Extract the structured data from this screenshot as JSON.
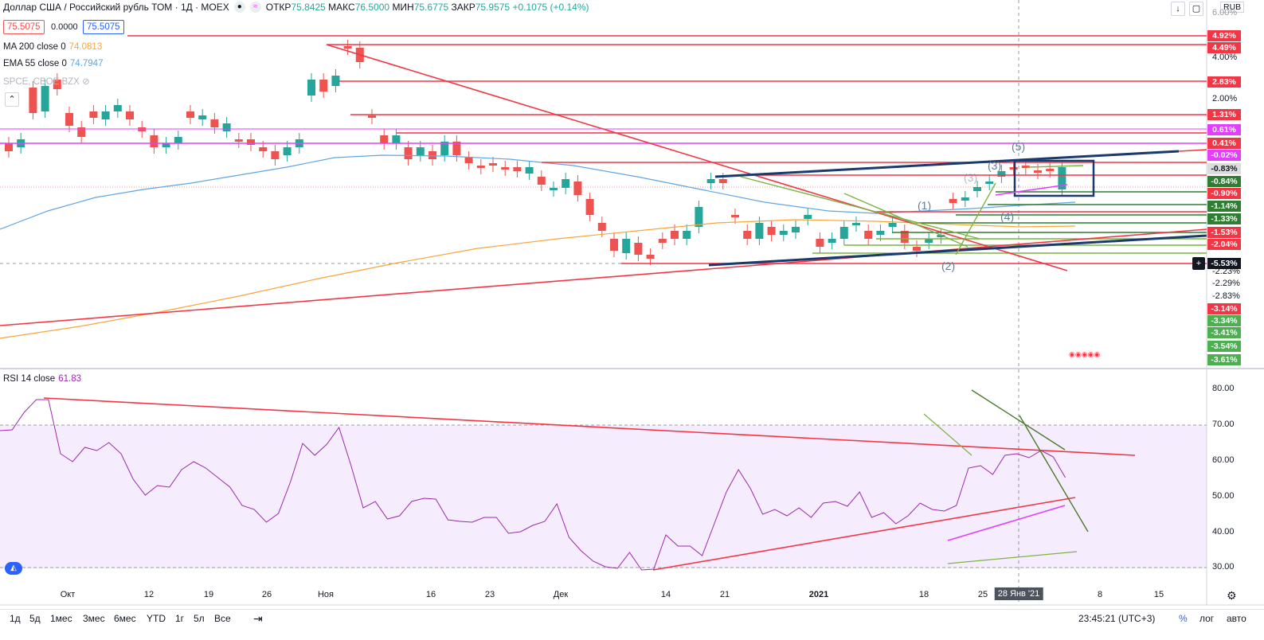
{
  "header": {
    "symbol": "Доллар США / Российский рубль ТОМ · 1Д · MOEX",
    "open_label": "ОТКР",
    "open": "75.8425",
    "high_label": "МАКС",
    "high": "76.5000",
    "low_label": "МИН",
    "low": "75.6775",
    "close_label": "ЗАКР",
    "close": "75.9575",
    "change": "+0.1075 (+0.14%)"
  },
  "price_boxes": {
    "bid": "75.5075",
    "spread": "0.0000",
    "ask": "75.5075"
  },
  "legend": {
    "ma200_label": "MA 200 close 0",
    "ma200_value": "74.0813",
    "ema55_label": "EMA 55 close 0",
    "ema55_value": "74.7947",
    "compare_label": "SPCE, CBOE BZX"
  },
  "currency": "RUB",
  "price_axis": [
    "6.00%",
    "4.00%",
    "2.00%",
    "-2.23%",
    "-2.29%",
    "-2.83%",
    "-3.34%",
    "-3.41%",
    "-3.54%",
    "-3.61%"
  ],
  "tags": [
    {
      "text": "4.92%",
      "bg": "#f23645"
    },
    {
      "text": "4.49%",
      "bg": "#f23645"
    },
    {
      "text": "2.83%",
      "bg": "#f23645"
    },
    {
      "text": "1.31%",
      "bg": "#f23645"
    },
    {
      "text": "0.61%",
      "bg": "#e040fb"
    },
    {
      "text": "0.41%",
      "bg": "#f23645"
    },
    {
      "text": "-0.02%",
      "bg": "#e040fb"
    },
    {
      "text": "-0.83%",
      "bg": "#dcdcdc"
    },
    {
      "text": "-0.84%",
      "bg": "#2e7d32"
    },
    {
      "text": "-0.90%",
      "bg": "#f23645"
    },
    {
      "text": "-1.14%",
      "bg": "#2e7d32"
    },
    {
      "text": "-1.33%",
      "bg": "#2e7d32"
    },
    {
      "text": "-1.53%",
      "bg": "#f23645"
    },
    {
      "text": "-2.04%",
      "bg": "#f23645"
    },
    {
      "text": "-5.53%",
      "bg": "#131722"
    },
    {
      "text": "-3.14%",
      "bg": "#f23645"
    },
    {
      "text": "-3.34%",
      "bg": "#4caf50"
    },
    {
      "text": "-3.41%",
      "bg": "#4caf50"
    },
    {
      "text": "-3.54%",
      "bg": "#4caf50"
    },
    {
      "text": "-3.61%",
      "bg": "#4caf50"
    }
  ],
  "waves": [
    "(5)",
    "(3)",
    "(3)",
    "(1)",
    "(4)",
    "(2)"
  ],
  "rsi": {
    "label": "RSI 14 close",
    "value": "61.83",
    "axis": [
      "80.00",
      "70.00",
      "60.00",
      "50.00",
      "40.00",
      "30.00"
    ]
  },
  "time_axis": [
    "Окт",
    "12",
    "19",
    "26",
    "Ноя",
    "16",
    "23",
    "Дек",
    "14",
    "21",
    "2021",
    "18",
    "25",
    "28 Янв '21",
    "8",
    "15"
  ],
  "periods": [
    "1д",
    "5д",
    "1мес",
    "3мес",
    "6мес",
    "YTD",
    "1г",
    "5л",
    "Все"
  ],
  "clock": "23:45:21 (UTC+3)",
  "scale_buttons": {
    "percent": "%",
    "log": "лог",
    "auto": "авто"
  },
  "colors": {
    "up": "#26a69a",
    "down": "#ef5350",
    "ma200": "#f7a53a",
    "ema55": "#5ea6e6",
    "rsi": "#9c27b0"
  }
}
